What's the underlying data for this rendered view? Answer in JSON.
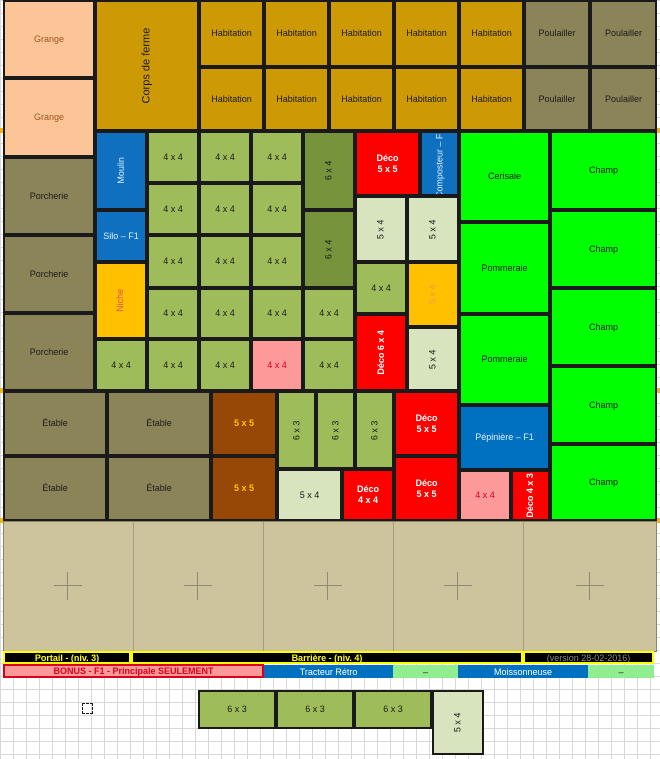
{
  "colors": {
    "grange": "#fcc597",
    "corps": "#cd9a05",
    "poulailler": "#8c8459",
    "moulin": "#0f70c0",
    "vert_clair": "#9ebc5a",
    "vert_fonce": "#77933c",
    "rouge": "#fd0100",
    "rose": "#fe9999",
    "jaune": "#ffc000",
    "vert_pale": "#d7e4bd",
    "vert_vif": "#00ff00",
    "brun": "#974806",
    "bleu": "#0070c0",
    "beige": "#cdc49e"
  },
  "cells": [
    {
      "id": "grange-1",
      "label": "Grange",
      "color": "grange",
      "tc": "#a3541b"
    },
    {
      "id": "grange-2",
      "label": "Grange",
      "color": "grange",
      "tc": "#a3541b"
    },
    {
      "id": "corps-de-ferme",
      "label": "Corps de ferme",
      "color": "corps",
      "vertical": true,
      "tc": "#1a1a1a",
      "fs": 11
    },
    {
      "id": "habitation-1",
      "label": "Habitation",
      "color": "corps"
    },
    {
      "id": "habitation-2",
      "label": "Habitation",
      "color": "corps"
    },
    {
      "id": "habitation-3",
      "label": "Habitation",
      "color": "corps"
    },
    {
      "id": "habitation-4",
      "label": "Habitation",
      "color": "corps"
    },
    {
      "id": "habitation-5",
      "label": "Habitation",
      "color": "corps"
    },
    {
      "id": "habitation-6",
      "label": "Habitation",
      "color": "corps"
    },
    {
      "id": "habitation-7",
      "label": "Habitation",
      "color": "corps"
    },
    {
      "id": "habitation-8",
      "label": "Habitation",
      "color": "corps"
    },
    {
      "id": "habitation-9",
      "label": "Habitation",
      "color": "corps"
    },
    {
      "id": "habitation-10",
      "label": "Habitation",
      "color": "corps"
    },
    {
      "id": "poulailler-1",
      "label": "Poulailler",
      "color": "poulailler"
    },
    {
      "id": "poulailler-2",
      "label": "Poulailler",
      "color": "poulailler"
    },
    {
      "id": "poulailler-3",
      "label": "Poulailler",
      "color": "poulailler"
    },
    {
      "id": "poulailler-4",
      "label": "Poulailler",
      "color": "poulailler"
    },
    {
      "id": "porcherie-1",
      "label": "Porcherie",
      "color": "poulailler"
    },
    {
      "id": "porcherie-2",
      "label": "Porcherie",
      "color": "poulailler"
    },
    {
      "id": "porcherie-3",
      "label": "Porcherie",
      "color": "poulailler"
    },
    {
      "id": "moulin",
      "label": "Moulin",
      "color": "moulin",
      "vertical": true,
      "tc": "#ddeeff"
    },
    {
      "id": "silo",
      "label": "Silo – F1",
      "color": "moulin",
      "tc": "#ddeeff"
    },
    {
      "id": "niche",
      "label": "Niche",
      "color": "jaune",
      "vertical": true,
      "tc": "#d9534f"
    },
    {
      "id": "g-1",
      "label": "4 x 4",
      "color": "vert_clair"
    },
    {
      "id": "g-2",
      "label": "4 x 4",
      "color": "vert_clair"
    },
    {
      "id": "g-3",
      "label": "4 x 4",
      "color": "vert_clair"
    },
    {
      "id": "g-4",
      "label": "4 x 4",
      "color": "vert_clair"
    },
    {
      "id": "g-5",
      "label": "4 x 4",
      "color": "vert_clair"
    },
    {
      "id": "g-6",
      "label": "4 x 4",
      "color": "vert_clair"
    },
    {
      "id": "g-7",
      "label": "4 x 4",
      "color": "vert_clair"
    },
    {
      "id": "g-8",
      "label": "4 x 4",
      "color": "vert_clair"
    },
    {
      "id": "g-9",
      "label": "4 x 4",
      "color": "vert_clair"
    },
    {
      "id": "g-10",
      "label": "4 x 4",
      "color": "vert_clair"
    },
    {
      "id": "g-11",
      "label": "4 x 4",
      "color": "vert_clair"
    },
    {
      "id": "g-12",
      "label": "4 x 4",
      "color": "vert_clair"
    },
    {
      "id": "g-13",
      "label": "4 x 4",
      "color": "vert_clair"
    },
    {
      "id": "g-14",
      "label": "4 x 4",
      "color": "vert_clair"
    },
    {
      "id": "g-15",
      "label": "4 x 4",
      "color": "vert_clair"
    },
    {
      "id": "g-16",
      "label": "4 x 4",
      "color": "vert_clair"
    },
    {
      "id": "g-17",
      "label": "4 x 4",
      "color": "vert_clair"
    },
    {
      "id": "g-18",
      "label": "4 x 4",
      "color": "rose",
      "tc": "#d9001b"
    },
    {
      "id": "g-19",
      "label": "4 x 4",
      "color": "vert_clair"
    },
    {
      "id": "g-20",
      "label": "6 x 4",
      "color": "vert_fonce",
      "vertical": true
    },
    {
      "id": "g-21",
      "label": "6 x 4",
      "color": "vert_fonce",
      "vertical": true
    },
    {
      "id": "deco-1",
      "label": "Déco\n5 x 5",
      "color": "rouge",
      "tc": "#ffffff",
      "bold": true
    },
    {
      "id": "compost",
      "label": "Composteur –\nF1",
      "color": "moulin",
      "vertical": true,
      "tc": "#ddeeff"
    },
    {
      "id": "g-22",
      "label": "5 x 4",
      "color": "vert_pale",
      "vertical": true
    },
    {
      "id": "g-23",
      "label": "5 x 4",
      "color": "vert_pale",
      "vertical": true
    },
    {
      "id": "g-24",
      "label": "4 x 4",
      "color": "vert_clair"
    },
    {
      "id": "g-25",
      "label": "5 x 4",
      "color": "jaune",
      "vertical": true,
      "tc": "#f39c4a"
    },
    {
      "id": "deco-2",
      "label": "Déco\n6 x 4",
      "color": "rouge",
      "vertical": true,
      "tc": "#ffffff",
      "bold": true
    },
    {
      "id": "g-26",
      "label": "5 x 4",
      "color": "vert_pale",
      "vertical": true
    },
    {
      "id": "cerisaie",
      "label": "Cerisaie",
      "color": "vert_vif"
    },
    {
      "id": "pommeraie-1",
      "label": "Pommeraie",
      "color": "vert_vif"
    },
    {
      "id": "pommeraie-2",
      "label": "Pommeraie",
      "color": "vert_vif"
    },
    {
      "id": "pepiniere",
      "label": "Pépinière – F1",
      "color": "bleu",
      "tc": "#ddeeff"
    },
    {
      "id": "champ-1",
      "label": "Champ",
      "color": "vert_vif"
    },
    {
      "id": "champ-2",
      "label": "Champ",
      "color": "vert_vif"
    },
    {
      "id": "champ-3",
      "label": "Champ",
      "color": "vert_vif"
    },
    {
      "id": "champ-4",
      "label": "Champ",
      "color": "vert_vif"
    },
    {
      "id": "champ-5",
      "label": "Champ",
      "color": "vert_vif"
    },
    {
      "id": "etable-1",
      "label": "Étable",
      "color": "poulailler"
    },
    {
      "id": "etable-2",
      "label": "Étable",
      "color": "poulailler"
    },
    {
      "id": "etable-3",
      "label": "Étable",
      "color": "poulailler"
    },
    {
      "id": "etable-4",
      "label": "Étable",
      "color": "poulailler"
    },
    {
      "id": "brun-1",
      "label": "5 x 5",
      "color": "brun",
      "tc": "#ffc000",
      "bold": true
    },
    {
      "id": "brun-2",
      "label": "5 x 5",
      "color": "brun",
      "tc": "#ffc000",
      "bold": true
    },
    {
      "id": "g-27",
      "label": "6 x 3",
      "color": "vert_clair",
      "vertical": true
    },
    {
      "id": "g-28",
      "label": "6 x 3",
      "color": "vert_clair",
      "vertical": true
    },
    {
      "id": "g-29",
      "label": "6 x 3",
      "color": "vert_clair",
      "vertical": true
    },
    {
      "id": "g-30",
      "label": "5 x 4",
      "color": "vert_pale"
    },
    {
      "id": "deco-3",
      "label": "Déco\n4 x 4",
      "color": "rouge",
      "tc": "#ffffff",
      "bold": true
    },
    {
      "id": "deco-4",
      "label": "Déco\n5 x 5",
      "color": "rouge",
      "tc": "#ffffff",
      "bold": true
    },
    {
      "id": "deco-5",
      "label": "Déco\n5 x 5",
      "color": "rouge",
      "tc": "#ffffff",
      "bold": true
    },
    {
      "id": "g-31",
      "label": "4 x 4",
      "color": "rose",
      "tc": "#d9001b"
    },
    {
      "id": "deco-6",
      "label": "Déco\n4 x 3",
      "color": "rouge",
      "vertical": true,
      "tc": "#ffffff",
      "bold": true
    },
    {
      "id": "ext-1",
      "label": "6 x 3",
      "color": "vert_clair"
    },
    {
      "id": "ext-2",
      "label": "6 x 3",
      "color": "vert_clair"
    },
    {
      "id": "ext-3",
      "label": "6 x 3",
      "color": "vert_clair"
    },
    {
      "id": "ext-4",
      "label": "5 x 4",
      "color": "vert_pale",
      "vertical": true
    }
  ],
  "footer": {
    "portail": "Portail - (niv. 3)",
    "barriere": "Barrière - (niv. 4)",
    "version": "(version 28-02-2016)",
    "bonus": "BONUS - F1 - Principale SEULEMENT",
    "tracteur": "Tracteur Rétro",
    "dash_1": "–",
    "moissonneuse": "Moissonneuse",
    "dash_2": "–"
  }
}
